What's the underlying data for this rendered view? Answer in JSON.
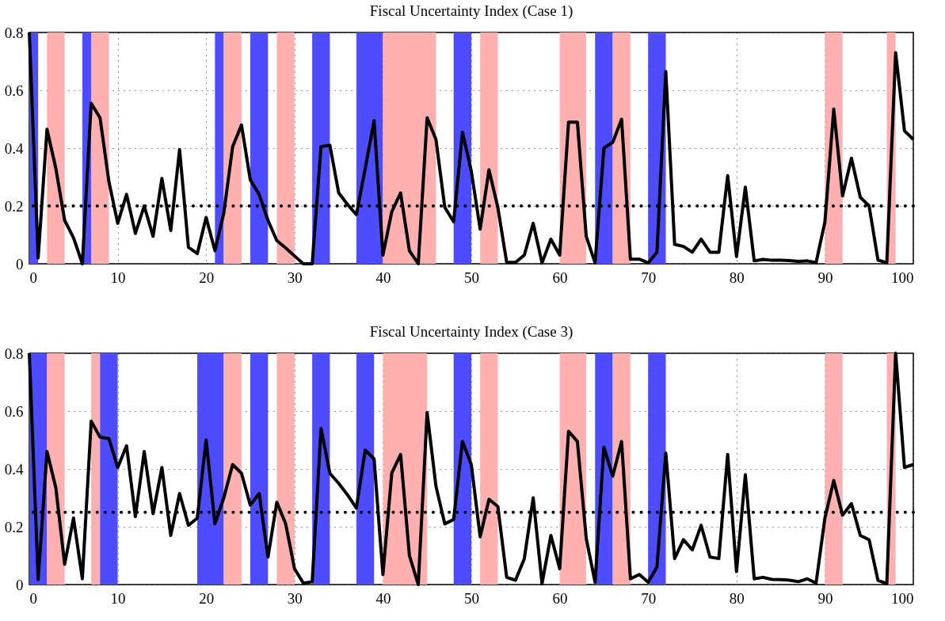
{
  "chart_data": [
    {
      "type": "line",
      "title": "Fiscal Uncertainty Index (Case 1)",
      "x": [
        0,
        1,
        2,
        3,
        4,
        5,
        6,
        7,
        8,
        9,
        10,
        11,
        12,
        13,
        14,
        15,
        16,
        17,
        18,
        19,
        20,
        21,
        22,
        23,
        24,
        25,
        26,
        27,
        28,
        29,
        30,
        31,
        32,
        33,
        34,
        35,
        36,
        37,
        38,
        39,
        40,
        41,
        42,
        43,
        44,
        45,
        46,
        47,
        48,
        49,
        50,
        51,
        52,
        53,
        54,
        55,
        56,
        57,
        58,
        59,
        60,
        61,
        62,
        63,
        64,
        65,
        66,
        67,
        68,
        69,
        70,
        71,
        72,
        73,
        74,
        75,
        76,
        77,
        78,
        79,
        80,
        81,
        82,
        83,
        84,
        85,
        86,
        87,
        88,
        89,
        90,
        91,
        92,
        93,
        94,
        95,
        96,
        97,
        98,
        99,
        100
      ],
      "series": [
        {
          "color": "#000000",
          "values": [
            0.8,
            0.02,
            0.465,
            0.33,
            0.15,
            0.09,
            0.0,
            0.555,
            0.505,
            0.285,
            0.14,
            0.24,
            0.105,
            0.2,
            0.095,
            0.295,
            0.115,
            0.395,
            0.057,
            0.035,
            0.16,
            0.045,
            0.175,
            0.405,
            0.48,
            0.29,
            0.24,
            0.15,
            0.08,
            0.055,
            0.027,
            0.0,
            0.0,
            0.405,
            0.41,
            0.245,
            0.205,
            0.17,
            0.33,
            0.495,
            0.03,
            0.18,
            0.245,
            0.045,
            0.0,
            0.505,
            0.43,
            0.195,
            0.145,
            0.455,
            0.32,
            0.12,
            0.325,
            0.195,
            0.005,
            0.005,
            0.03,
            0.14,
            0.003,
            0.085,
            0.03,
            0.49,
            0.49,
            0.095,
            0.003,
            0.4,
            0.42,
            0.5,
            0.016,
            0.016,
            0.003,
            0.04,
            0.665,
            0.067,
            0.06,
            0.04,
            0.085,
            0.04,
            0.04,
            0.305,
            0.025,
            0.265,
            0.01,
            0.015,
            0.012,
            0.012,
            0.011,
            0.008,
            0.01,
            0.004,
            0.145,
            0.535,
            0.235,
            0.365,
            0.23,
            0.2,
            0.013,
            0.003,
            0.73,
            0.46,
            0.43
          ]
        }
      ],
      "xlim": [
        0,
        100
      ],
      "xticks": [
        0,
        10,
        20,
        30,
        40,
        50,
        60,
        70,
        80,
        90,
        100
      ],
      "ylim": [
        0,
        0.8
      ],
      "yticks": [
        0,
        0.2,
        0.4,
        0.6,
        0.8
      ],
      "grid": true,
      "bands": [
        {
          "axis": "x",
          "from": 0,
          "to": 1,
          "color": "#4d4dff"
        },
        {
          "axis": "x",
          "from": 2,
          "to": 4,
          "color": "#ffb0b0"
        },
        {
          "axis": "x",
          "from": 6,
          "to": 7,
          "color": "#4d4dff"
        },
        {
          "axis": "x",
          "from": 7,
          "to": 9,
          "color": "#ffb0b0"
        },
        {
          "axis": "x",
          "from": 21,
          "to": 22,
          "color": "#4d4dff"
        },
        {
          "axis": "x",
          "from": 22,
          "to": 24,
          "color": "#ffb0b0"
        },
        {
          "axis": "x",
          "from": 25,
          "to": 27,
          "color": "#4d4dff"
        },
        {
          "axis": "x",
          "from": 28,
          "to": 30,
          "color": "#ffb0b0"
        },
        {
          "axis": "x",
          "from": 32,
          "to": 34,
          "color": "#4d4dff"
        },
        {
          "axis": "x",
          "from": 37,
          "to": 40,
          "color": "#4d4dff"
        },
        {
          "axis": "x",
          "from": 40,
          "to": 46,
          "color": "#ffb0b0"
        },
        {
          "axis": "x",
          "from": 48,
          "to": 50,
          "color": "#4d4dff"
        },
        {
          "axis": "x",
          "from": 51,
          "to": 53,
          "color": "#ffb0b0"
        },
        {
          "axis": "x",
          "from": 60,
          "to": 63,
          "color": "#ffb0b0"
        },
        {
          "axis": "x",
          "from": 64,
          "to": 66,
          "color": "#4d4dff"
        },
        {
          "axis": "x",
          "from": 66,
          "to": 68,
          "color": "#ffb0b0"
        },
        {
          "axis": "x",
          "from": 70,
          "to": 72,
          "color": "#4d4dff"
        },
        {
          "axis": "x",
          "from": 90,
          "to": 92,
          "color": "#ffb0b0"
        },
        {
          "axis": "x",
          "from": 97,
          "to": 98,
          "color": "#ffb0b0"
        }
      ],
      "ref_lines": [
        {
          "axis": "y",
          "value": 0.2,
          "color": "#000000",
          "line_style": "dotted"
        }
      ]
    },
    {
      "type": "line",
      "title": "Fiscal Uncertainty Index (Case 3)",
      "x": [
        0,
        1,
        2,
        3,
        4,
        5,
        6,
        7,
        8,
        9,
        10,
        11,
        12,
        13,
        14,
        15,
        16,
        17,
        18,
        19,
        20,
        21,
        22,
        23,
        24,
        25,
        26,
        27,
        28,
        29,
        30,
        31,
        32,
        33,
        34,
        35,
        36,
        37,
        38,
        39,
        40,
        41,
        42,
        43,
        44,
        45,
        46,
        47,
        48,
        49,
        50,
        51,
        52,
        53,
        54,
        55,
        56,
        57,
        58,
        59,
        60,
        61,
        62,
        63,
        64,
        65,
        66,
        67,
        68,
        69,
        70,
        71,
        72,
        73,
        74,
        75,
        76,
        77,
        78,
        79,
        80,
        81,
        82,
        83,
        84,
        85,
        86,
        87,
        88,
        89,
        90,
        91,
        92,
        93,
        94,
        95,
        96,
        97,
        98,
        99,
        100
      ],
      "series": [
        {
          "color": "#000000",
          "values": [
            0.8,
            0.017,
            0.46,
            0.335,
            0.07,
            0.23,
            0.02,
            0.565,
            0.51,
            0.505,
            0.405,
            0.48,
            0.235,
            0.46,
            0.245,
            0.405,
            0.17,
            0.315,
            0.205,
            0.23,
            0.5,
            0.21,
            0.3,
            0.415,
            0.385,
            0.275,
            0.315,
            0.095,
            0.285,
            0.21,
            0.055,
            0.005,
            0.01,
            0.54,
            0.385,
            0.35,
            0.31,
            0.265,
            0.465,
            0.435,
            0.035,
            0.385,
            0.45,
            0.1,
            0.0,
            0.595,
            0.34,
            0.21,
            0.225,
            0.495,
            0.415,
            0.165,
            0.295,
            0.27,
            0.025,
            0.015,
            0.09,
            0.3,
            0.003,
            0.17,
            0.055,
            0.53,
            0.495,
            0.16,
            0.008,
            0.475,
            0.375,
            0.495,
            0.02,
            0.035,
            0.008,
            0.06,
            0.455,
            0.09,
            0.155,
            0.12,
            0.205,
            0.095,
            0.09,
            0.45,
            0.045,
            0.38,
            0.02,
            0.025,
            0.018,
            0.017,
            0.015,
            0.01,
            0.02,
            0.005,
            0.23,
            0.36,
            0.24,
            0.28,
            0.17,
            0.155,
            0.015,
            0.003,
            0.8,
            0.405,
            0.415
          ]
        }
      ],
      "xlim": [
        0,
        100
      ],
      "xticks": [
        0,
        10,
        20,
        30,
        40,
        50,
        60,
        70,
        80,
        90,
        100
      ],
      "ylim": [
        0,
        0.8
      ],
      "yticks": [
        0,
        0.2,
        0.4,
        0.6,
        0.8
      ],
      "grid": true,
      "bands": [
        {
          "axis": "x",
          "from": 0,
          "to": 2,
          "color": "#4d4dff"
        },
        {
          "axis": "x",
          "from": 2,
          "to": 4,
          "color": "#ffb0b0"
        },
        {
          "axis": "x",
          "from": 7,
          "to": 8,
          "color": "#ffb0b0"
        },
        {
          "axis": "x",
          "from": 8,
          "to": 10,
          "color": "#4d4dff"
        },
        {
          "axis": "x",
          "from": 19,
          "to": 22,
          "color": "#4d4dff"
        },
        {
          "axis": "x",
          "from": 22,
          "to": 24,
          "color": "#ffb0b0"
        },
        {
          "axis": "x",
          "from": 25,
          "to": 27,
          "color": "#4d4dff"
        },
        {
          "axis": "x",
          "from": 28,
          "to": 30,
          "color": "#ffb0b0"
        },
        {
          "axis": "x",
          "from": 32,
          "to": 34,
          "color": "#4d4dff"
        },
        {
          "axis": "x",
          "from": 37,
          "to": 39,
          "color": "#4d4dff"
        },
        {
          "axis": "x",
          "from": 40,
          "to": 45,
          "color": "#ffb0b0"
        },
        {
          "axis": "x",
          "from": 48,
          "to": 50,
          "color": "#4d4dff"
        },
        {
          "axis": "x",
          "from": 51,
          "to": 53,
          "color": "#ffb0b0"
        },
        {
          "axis": "x",
          "from": 60,
          "to": 63,
          "color": "#ffb0b0"
        },
        {
          "axis": "x",
          "from": 64,
          "to": 66,
          "color": "#4d4dff"
        },
        {
          "axis": "x",
          "from": 66,
          "to": 68,
          "color": "#ffb0b0"
        },
        {
          "axis": "x",
          "from": 70,
          "to": 72,
          "color": "#4d4dff"
        },
        {
          "axis": "x",
          "from": 90,
          "to": 92,
          "color": "#ffb0b0"
        },
        {
          "axis": "x",
          "from": 97,
          "to": 98,
          "color": "#ffb0b0"
        }
      ],
      "ref_lines": [
        {
          "axis": "y",
          "value": 0.25,
          "color": "#000000",
          "line_style": "dotted"
        }
      ]
    }
  ]
}
